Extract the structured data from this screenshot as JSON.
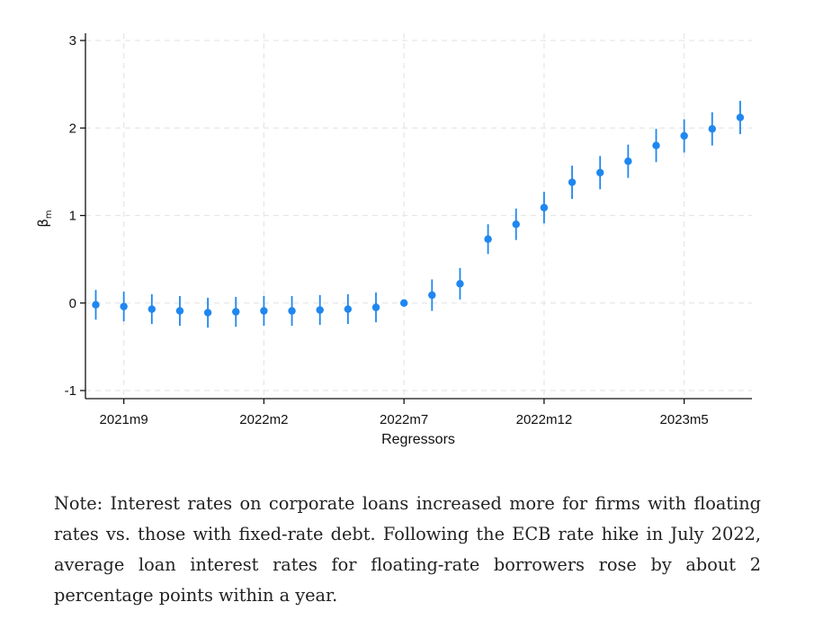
{
  "chart_data": {
    "type": "scatter",
    "xlabel": "Regressors",
    "ylabel": "β",
    "ylabel_sub": "m",
    "ylim": [
      -1,
      3
    ],
    "yticks": [
      -1,
      0,
      1,
      2,
      3
    ],
    "xticks": [
      "2021m9",
      "2022m2",
      "2022m7",
      "2022m12",
      "2023m5"
    ],
    "grid": true,
    "marker_color": "#1f87f0",
    "categories": [
      "2021m8",
      "2021m9",
      "2021m10",
      "2021m11",
      "2021m12",
      "2022m1",
      "2022m2",
      "2022m3",
      "2022m4",
      "2022m5",
      "2022m6",
      "2022m7",
      "2022m8",
      "2022m9",
      "2022m10",
      "2022m11",
      "2022m12",
      "2023m1",
      "2023m2",
      "2023m3",
      "2023m4",
      "2023m5",
      "2023m6",
      "2023m7"
    ],
    "values": [
      -0.02,
      -0.04,
      -0.07,
      -0.09,
      -0.11,
      -0.1,
      -0.09,
      -0.09,
      -0.08,
      -0.07,
      -0.05,
      0.0,
      0.09,
      0.22,
      0.73,
      0.9,
      1.09,
      1.38,
      1.49,
      1.62,
      1.8,
      1.91,
      1.99,
      2.12
    ],
    "ci_low": [
      -0.19,
      -0.21,
      -0.24,
      -0.26,
      -0.28,
      -0.27,
      -0.26,
      -0.26,
      -0.25,
      -0.24,
      -0.22,
      0.0,
      -0.09,
      0.04,
      0.56,
      0.72,
      0.91,
      1.19,
      1.3,
      1.43,
      1.61,
      1.72,
      1.8,
      1.93
    ],
    "ci_high": [
      0.15,
      0.13,
      0.1,
      0.08,
      0.06,
      0.07,
      0.08,
      0.08,
      0.09,
      0.1,
      0.12,
      0.0,
      0.27,
      0.4,
      0.9,
      1.08,
      1.27,
      1.57,
      1.68,
      1.81,
      1.99,
      2.1,
      2.18,
      2.31
    ]
  },
  "note": "Note: Interest rates on corporate loans increased more for firms with floating rates vs. those with fixed-rate debt. Following the ECB rate hike in July 2022, average loan interest rates for floating-rate borrowers rose by about 2 percentage points within a year."
}
